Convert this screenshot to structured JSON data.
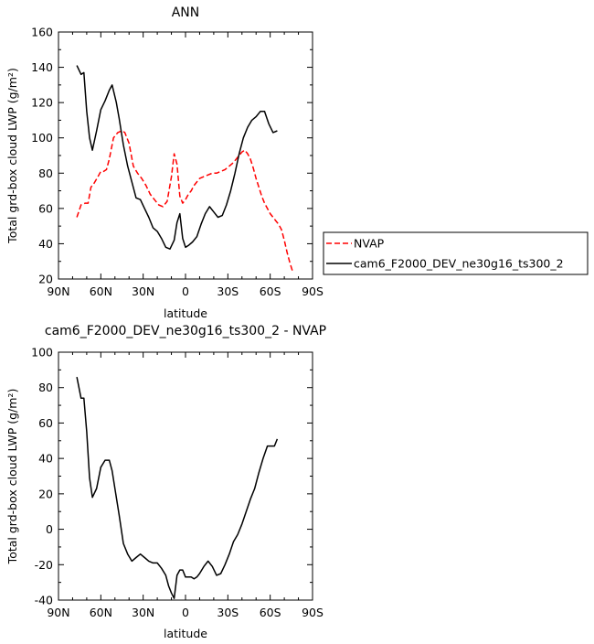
{
  "colors": {
    "model": "#000000",
    "obs": "#ff0000"
  },
  "chart_data": [
    {
      "type": "line",
      "title": "ANN",
      "xlabel": "latitude",
      "ylabel": "Total grd-box cloud LWP (g/m²)",
      "xlim": [
        -90,
        90
      ],
      "ylim": [
        20,
        160
      ],
      "xticks": [
        -90,
        -60,
        -30,
        0,
        30,
        60,
        90
      ],
      "xtick_labels": [
        "90N",
        "60N",
        "30N",
        "0",
        "30S",
        "60S",
        "90S"
      ],
      "yticks": [
        20,
        40,
        60,
        80,
        100,
        120,
        140,
        160
      ],
      "ytick_labels": [
        "20",
        "40",
        "60",
        "80",
        "100",
        "120",
        "140",
        "160"
      ],
      "legend": "right",
      "series": [
        {
          "name": "NVAP",
          "color": "#ff0000",
          "style": "dashed",
          "x": [
            -77,
            -74,
            -71,
            -69,
            -67,
            -65,
            -62,
            -60,
            -58,
            -56,
            -54,
            -51,
            -48,
            -45,
            -43,
            -40,
            -37,
            -34,
            -31,
            -28,
            -25,
            -22,
            -19,
            -16,
            -13,
            -10,
            -8,
            -6,
            -4,
            -2,
            0,
            2,
            4,
            6,
            8,
            10,
            13,
            16,
            19,
            22,
            25,
            28,
            31,
            34,
            37,
            40,
            42,
            44,
            46,
            48,
            50,
            52,
            54,
            56,
            58,
            60,
            62,
            64,
            66,
            68,
            70,
            72,
            74,
            76
          ],
          "y": [
            55,
            62,
            63,
            63,
            72,
            74,
            78,
            81,
            81,
            82,
            88,
            100,
            103,
            104,
            103,
            97,
            84,
            80,
            77,
            73,
            68,
            65,
            62,
            61,
            64,
            78,
            91,
            85,
            67,
            63,
            65,
            68,
            70,
            73,
            75,
            77,
            78,
            79,
            80,
            80,
            81,
            82,
            84,
            86,
            89,
            92,
            93,
            91,
            88,
            83,
            77,
            72,
            67,
            63,
            60,
            57,
            55,
            53,
            51,
            48,
            42,
            35,
            29,
            24
          ]
        },
        {
          "name": "cam6_F2000_DEV_ne30g16_ts300_2",
          "color": "#000000",
          "style": "solid",
          "x": [
            -77,
            -74,
            -72,
            -70,
            -68,
            -66,
            -63,
            -60,
            -57,
            -54,
            -52,
            -49,
            -47,
            -44,
            -41,
            -38,
            -35,
            -32,
            -29,
            -26,
            -23,
            -20,
            -17,
            -14,
            -11,
            -8,
            -6,
            -4,
            -2,
            0,
            2,
            5,
            8,
            11,
            14,
            17,
            20,
            23,
            26,
            29,
            32,
            35,
            38,
            41,
            44,
            47,
            50,
            53,
            56,
            59,
            62,
            65
          ],
          "y": [
            141,
            136,
            137,
            115,
            100,
            93,
            104,
            116,
            121,
            127,
            130,
            120,
            111,
            96,
            84,
            75,
            66,
            65,
            60,
            55,
            49,
            47,
            43,
            38,
            37,
            42,
            52,
            57,
            43,
            38,
            39,
            41,
            44,
            51,
            57,
            61,
            58,
            55,
            56,
            62,
            70,
            80,
            91,
            100,
            106,
            110,
            112,
            115,
            115,
            108,
            103,
            104
          ]
        }
      ]
    },
    {
      "type": "line",
      "title": "cam6_F2000_DEV_ne30g16_ts300_2 - NVAP",
      "xlabel": "latitude",
      "ylabel": "Total grd-box cloud LWP (g/m²)",
      "xlim": [
        -90,
        90
      ],
      "ylim": [
        -40,
        100
      ],
      "xticks": [
        -90,
        -60,
        -30,
        0,
        30,
        60,
        90
      ],
      "xtick_labels": [
        "90N",
        "60N",
        "30N",
        "0",
        "30S",
        "60S",
        "90S"
      ],
      "yticks": [
        -40,
        -20,
        0,
        20,
        40,
        60,
        80,
        100
      ],
      "ytick_labels": [
        "-40",
        "-20",
        "0",
        "20",
        "40",
        "60",
        "80",
        "100"
      ],
      "series": [
        {
          "color": "#000000",
          "style": "solid",
          "x": [
            -77,
            -74,
            -72,
            -70,
            -68,
            -66,
            -63,
            -60,
            -57,
            -54,
            -52,
            -49,
            -47,
            -44,
            -41,
            -38,
            -35,
            -32,
            -29,
            -26,
            -23,
            -20,
            -17,
            -14,
            -12,
            -10,
            -8,
            -6,
            -4,
            -2,
            0,
            2,
            4,
            6,
            8,
            10,
            13,
            16,
            19,
            22,
            25,
            28,
            31,
            34,
            37,
            40,
            43,
            46,
            49,
            52,
            55,
            58,
            61,
            63,
            65
          ],
          "y": [
            86,
            74,
            74,
            55,
            29,
            18,
            23,
            35,
            39,
            39,
            33,
            18,
            8,
            -8,
            -14,
            -18,
            -16,
            -14,
            -16,
            -18,
            -19,
            -19,
            -22,
            -26,
            -32,
            -36,
            -39,
            -26,
            -23,
            -23,
            -27,
            -27,
            -27,
            -28,
            -27,
            -25,
            -21,
            -18,
            -21,
            -26,
            -25,
            -20,
            -14,
            -7,
            -3,
            3,
            10,
            17,
            23,
            32,
            40,
            47,
            47,
            47,
            51
          ]
        }
      ]
    }
  ]
}
